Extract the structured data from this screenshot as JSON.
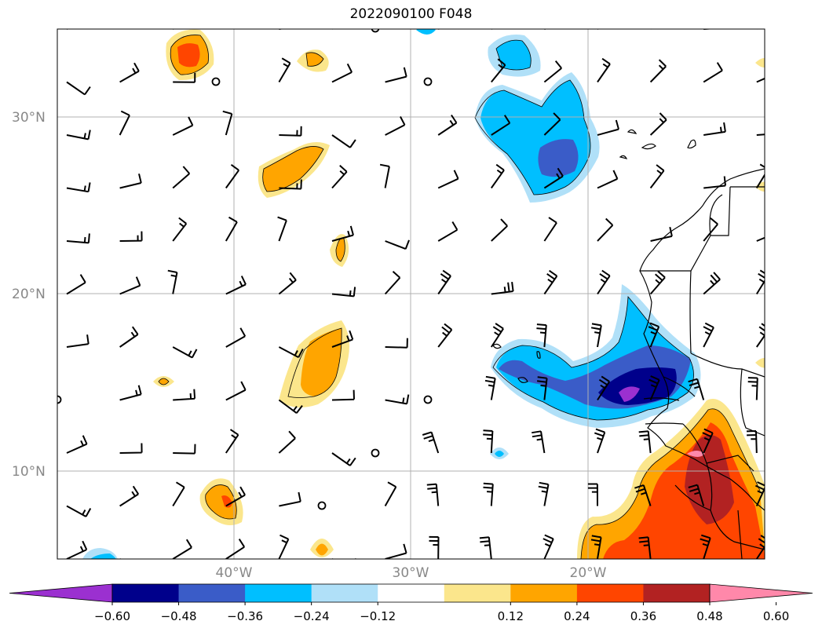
{
  "title": "2022090100 F048",
  "map": {
    "lat_labels": [
      "30°N",
      "20°N",
      "10°N"
    ],
    "lon_labels": [
      "40°W",
      "30°W",
      "20°W"
    ],
    "grid": true,
    "coastline": true
  },
  "colorbar": {
    "levels": [
      "−0.60",
      "−0.48",
      "−0.36",
      "−0.24",
      "−0.12",
      "0.12",
      "0.24",
      "0.36",
      "0.48",
      "0.60"
    ],
    "colors": [
      "#9b30d0",
      "#00008b",
      "#3a5cc8",
      "#00bfff",
      "#b0e0f8",
      "#ffffff",
      "#fbe68c",
      "#ffa500",
      "#ff4500",
      "#b22222",
      "#ff88aa"
    ],
    "extend": "both"
  },
  "icons": {
    "wind": "wind-barb-icon",
    "calm": "calm-circle-icon"
  }
}
